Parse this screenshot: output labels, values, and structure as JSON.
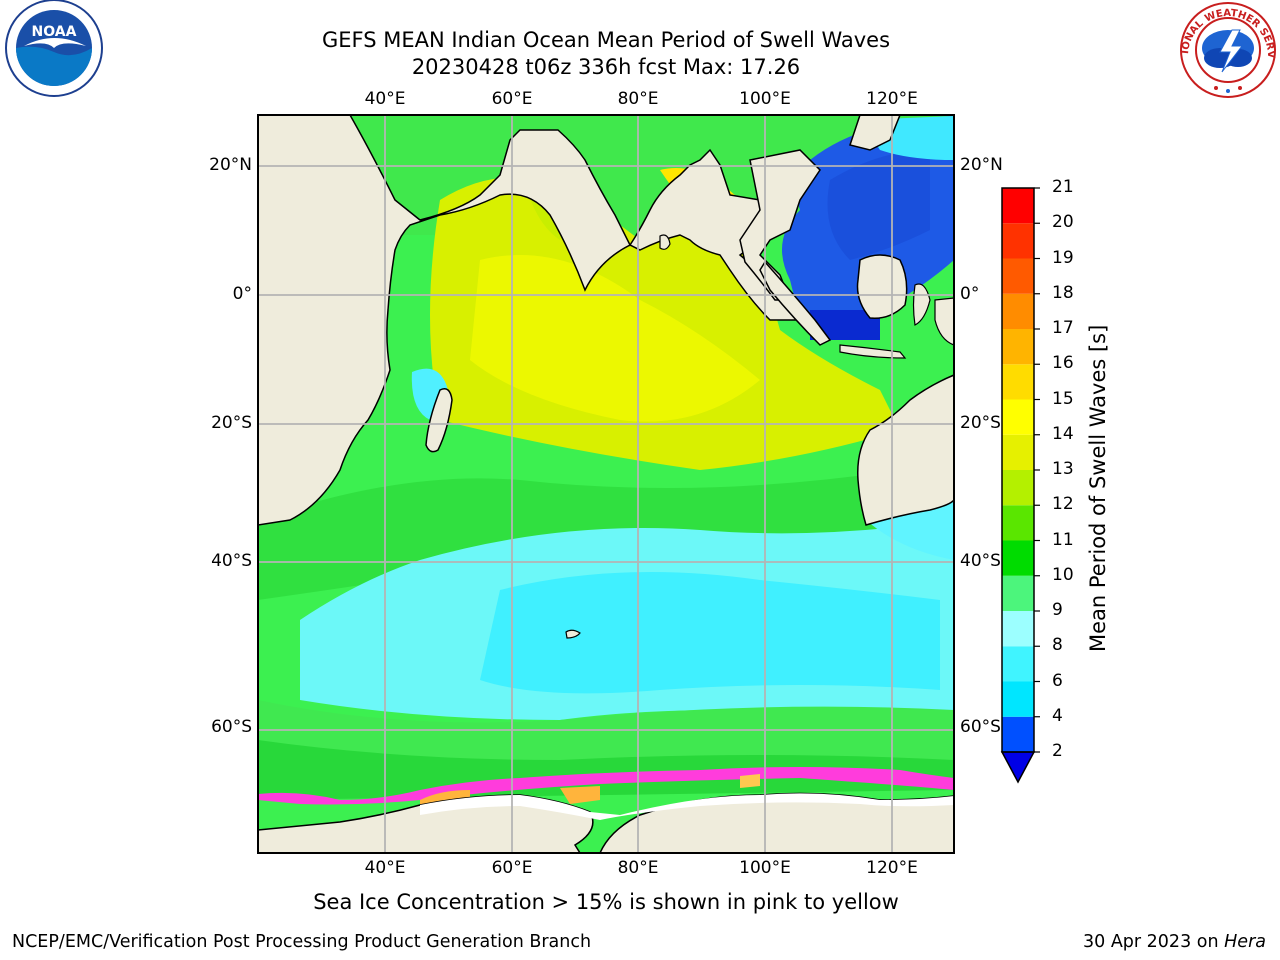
{
  "header": {
    "title_line1": "GEFS MEAN Indian Ocean Mean Period of Swell Waves",
    "title_line2": "20230428 t06z 336h fcst   Max: 17.26"
  },
  "logos": {
    "noaa_text": "NOAA",
    "nws_text": "NATIONAL WEATHER SERVICE"
  },
  "map": {
    "lon_labels": [
      "40°E",
      "60°E",
      "80°E",
      "100°E",
      "120°E"
    ],
    "lat_labels": [
      "20°N",
      "0°",
      "20°S",
      "40°S",
      "60°S"
    ],
    "colors": {
      "land": "#efecdc",
      "ocean_base": "#3cf050",
      "gridline": "#b4b4b4"
    }
  },
  "colorbar": {
    "title": "Mean Period of Swell Waves [s]",
    "tick_labels": [
      "2",
      "4",
      "6",
      "8",
      "9",
      "10",
      "11",
      "12",
      "13",
      "14",
      "15",
      "16",
      "17",
      "18",
      "19",
      "20",
      "21"
    ],
    "colors": [
      "#0050ff",
      "#00e6ff",
      "#40f4ff",
      "#9cffff",
      "#4cf57c",
      "#00dc00",
      "#5ae600",
      "#b4f000",
      "#e6f000",
      "#ffff00",
      "#ffdc00",
      "#ffb400",
      "#ff8c00",
      "#ff5a00",
      "#ff3200",
      "#ff0000"
    ],
    "extend_color": "#0000e6"
  },
  "notes": {
    "sea_ice": "Sea Ice Concentration > 15% is shown in pink to yellow",
    "footer_left": "NCEP/EMC/Verification Post Processing Product Generation Branch",
    "footer_date": "30 Apr 2023 on ",
    "footer_machine": "Hera"
  }
}
